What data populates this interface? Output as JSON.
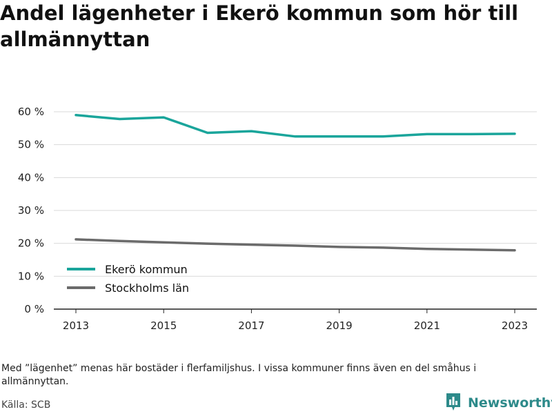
{
  "title": "Andel lägenheter i Ekerö kommun som hör till allmännyttan",
  "note": "Med ”lägenhet” menas här bostäder i flerfamiljshus. I vissa kommuner finns även en del småhus i allmännyttan.",
  "source": "Källa: SCB",
  "brand": {
    "name": "Newsworthy",
    "icon": "bar-chart-logo-icon",
    "color": "#2d8a8a"
  },
  "chart_data": {
    "type": "line",
    "x": [
      2013,
      2014,
      2015,
      2016,
      2017,
      2018,
      2019,
      2020,
      2021,
      2022,
      2023
    ],
    "x_ticks": [
      "2013",
      "2015",
      "2017",
      "2019",
      "2021",
      "2023"
    ],
    "y_ticks": [
      "0 %",
      "10 %",
      "20 %",
      "30 %",
      "40 %",
      "50 %",
      "60 %"
    ],
    "ylim": [
      0,
      60
    ],
    "grid": true,
    "legend_position": "bottom-left",
    "series": [
      {
        "name": "Ekerö kommun",
        "color": "#1aa59b",
        "values": [
          59.0,
          57.8,
          58.3,
          53.6,
          54.1,
          52.5,
          52.5,
          52.5,
          53.2,
          53.2,
          53.3
        ]
      },
      {
        "name": "Stockholms län",
        "color": "#6b6b6b",
        "values": [
          21.2,
          20.7,
          20.3,
          19.9,
          19.6,
          19.3,
          18.9,
          18.7,
          18.3,
          18.1,
          17.9
        ]
      }
    ]
  }
}
